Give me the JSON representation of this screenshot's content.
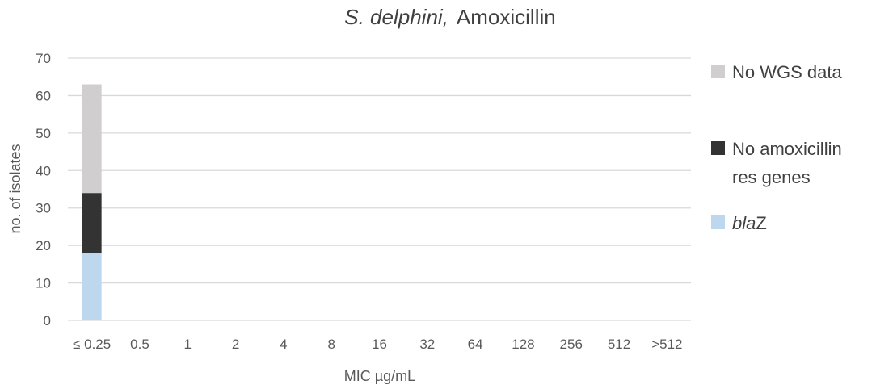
{
  "chart_data": {
    "type": "bar",
    "stacked": true,
    "title_species": "S. delphini,",
    "title_drug": "Amoxicillin",
    "xlabel": "MIC µg/mL",
    "ylabel": "no. of isolates",
    "ylim": [
      0,
      70
    ],
    "yticks": [
      "0",
      "10",
      "20",
      "30",
      "40",
      "50",
      "60",
      "70"
    ],
    "grid": true,
    "legend_position": "right",
    "categories": [
      "≤ 0.25",
      "0.5",
      "1",
      "2",
      "4",
      "8",
      "16",
      "32",
      "64",
      "128",
      "256",
      "512",
      ">512"
    ],
    "series": [
      {
        "name": "blaZ",
        "name_parts": [
          "bla",
          "Z"
        ],
        "color": "#bdd7ee",
        "values": [
          18,
          0,
          0,
          0,
          0,
          0,
          0,
          0,
          0,
          0,
          0,
          0,
          0
        ]
      },
      {
        "name": "No amoxicillin res genes",
        "name_lines": [
          "No amoxicillin",
          "res genes"
        ],
        "color": "#333333",
        "values": [
          16,
          0,
          0,
          0,
          0,
          0,
          0,
          0,
          0,
          0,
          0,
          0,
          0
        ]
      },
      {
        "name": "No WGS data",
        "color": "#d0cece",
        "values": [
          29,
          0,
          0,
          0,
          0,
          0,
          0,
          0,
          0,
          0,
          0,
          0,
          0
        ]
      }
    ]
  }
}
